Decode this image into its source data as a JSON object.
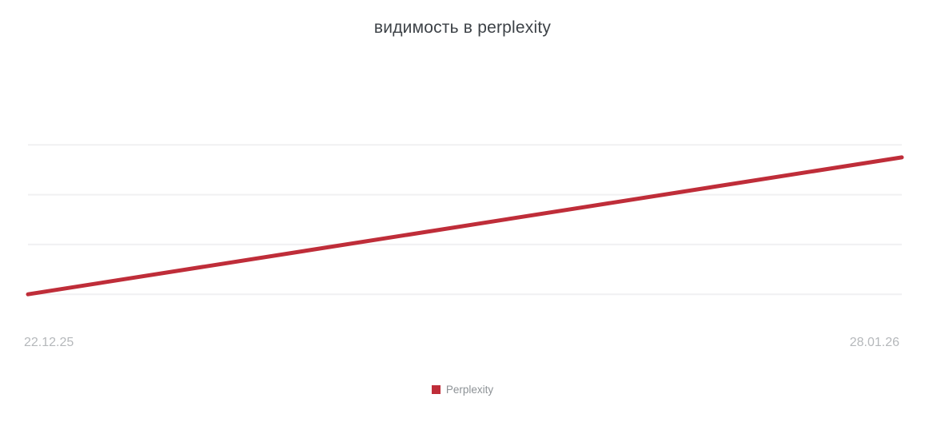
{
  "chart_data": {
    "type": "line",
    "title": "видимость в perplexity",
    "x": [
      "22.12.25",
      "28.01.26"
    ],
    "series": [
      {
        "name": "Perplexity",
        "values": [
          0,
          2.75
        ],
        "color": "#bf2d39"
      }
    ],
    "xlabel": "",
    "ylabel": "",
    "y_tick_labels": [],
    "y_axis_visible": false,
    "ylim": [
      0,
      3
    ],
    "grid": "horizontal",
    "gridline_count": 4,
    "gridline_color": "#f0f0f2",
    "legend_position": "bottom-center"
  }
}
